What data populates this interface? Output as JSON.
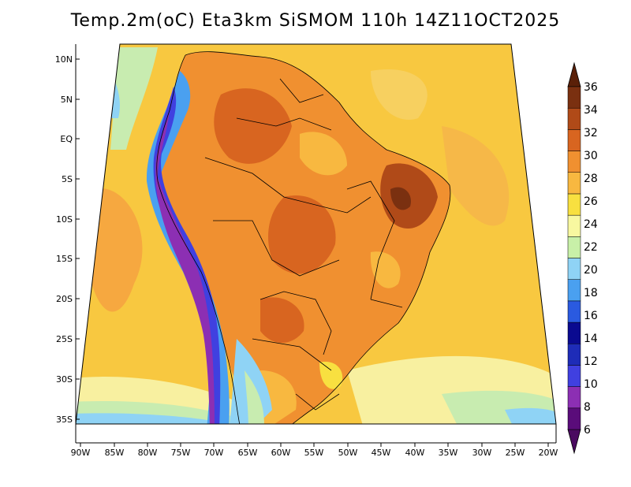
{
  "title": "Temp.2m(oC) Eta3km SiSMOM 110h 14Z11OCT2025",
  "map": {
    "lat_ticks": [
      "10N",
      "5N",
      "EQ",
      "5S",
      "10S",
      "15S",
      "20S",
      "25S",
      "30S",
      "35S"
    ],
    "lon_ticks": [
      "90W",
      "85W",
      "80W",
      "75W",
      "70W",
      "65W",
      "60W",
      "55W",
      "50W",
      "45W",
      "40W",
      "35W",
      "30W",
      "25W",
      "20W"
    ]
  },
  "colorbar": {
    "levels": [
      "6",
      "8",
      "10",
      "12",
      "14",
      "16",
      "18",
      "20",
      "22",
      "24",
      "26",
      "28",
      "30",
      "32",
      "34",
      "36"
    ],
    "colors": [
      "#5a0c7a",
      "#8c2fb3",
      "#4040e0",
      "#1e2cb8",
      "#0a0a90",
      "#2a5ae0",
      "#4aa0f0",
      "#8fd3f5",
      "#c8f0a8",
      "#f8f8a0",
      "#f8e040",
      "#f8b840",
      "#f09030",
      "#d86520",
      "#b04a18",
      "#7a3010"
    ]
  }
}
